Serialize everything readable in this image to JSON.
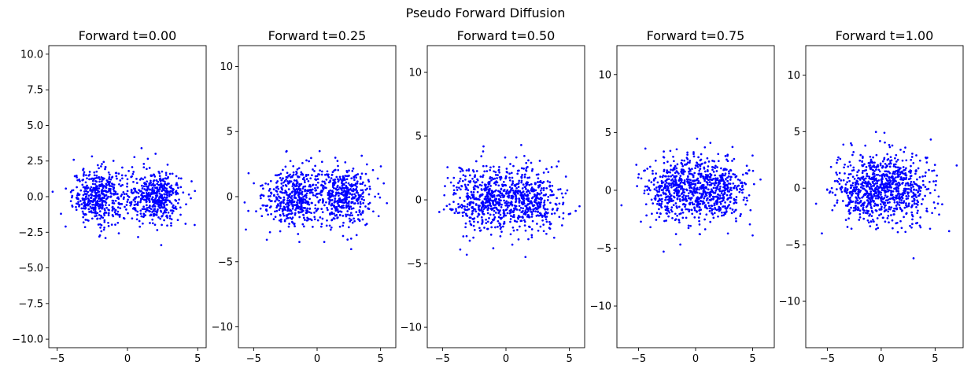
{
  "figure": {
    "suptitle": "Pseudo Forward Diffusion",
    "point_color": "#0000ff",
    "axis_color": "#000000"
  },
  "chart_data": [
    {
      "type": "scatter",
      "title": "Forward t=0.00",
      "xlabel": "",
      "ylabel": "",
      "xlim": [
        -5.6,
        5.6
      ],
      "ylim": [
        -10.6,
        10.6
      ],
      "xticks": [
        {
          "v": -5,
          "label": "−5"
        },
        {
          "v": 0,
          "label": "0"
        },
        {
          "v": 5,
          "label": "5"
        }
      ],
      "yticks": [
        {
          "v": -10,
          "label": "−10.0"
        },
        {
          "v": -7.5,
          "label": "−7.5"
        },
        {
          "v": -5,
          "label": "−5.0"
        },
        {
          "v": -2.5,
          "label": "−2.5"
        },
        {
          "v": 0,
          "label": "0.0"
        },
        {
          "v": 2.5,
          "label": "2.5"
        },
        {
          "v": 5,
          "label": "5.0"
        },
        {
          "v": 7.5,
          "label": "7.5"
        },
        {
          "v": 10,
          "label": "10.0"
        }
      ],
      "clusters": [
        {
          "center": [
            -2.0,
            0.0
          ],
          "spread": [
            0.95,
            0.95
          ],
          "n": 450
        },
        {
          "center": [
            2.0,
            0.0
          ],
          "spread": [
            0.95,
            0.95
          ],
          "n": 450
        }
      ],
      "outliers": [
        [
          1.0,
          3.4
        ],
        [
          2.4,
          -3.4
        ],
        [
          -2.0,
          -2.8
        ],
        [
          -4.4,
          -2.1
        ],
        [
          4.8,
          0.4
        ]
      ],
      "grid": false,
      "legend": "none"
    },
    {
      "type": "scatter",
      "title": "Forward t=0.25",
      "xlabel": "",
      "ylabel": "",
      "xlim": [
        -6.2,
        6.2
      ],
      "ylim": [
        -11.6,
        11.6
      ],
      "xticks": [
        {
          "v": -5,
          "label": "−5"
        },
        {
          "v": 0,
          "label": "0"
        },
        {
          "v": 5,
          "label": "5"
        }
      ],
      "yticks": [
        {
          "v": -10,
          "label": "−10"
        },
        {
          "v": -5,
          "label": "−5"
        },
        {
          "v": 0,
          "label": "0"
        },
        {
          "v": 5,
          "label": "5"
        },
        {
          "v": 10,
          "label": "10"
        }
      ],
      "clusters": [
        {
          "center": [
            -1.9,
            0.0
          ],
          "spread": [
            1.15,
            1.1
          ],
          "n": 450
        },
        {
          "center": [
            1.9,
            0.0
          ],
          "spread": [
            1.15,
            1.1
          ],
          "n": 450
        }
      ],
      "outliers": [
        [
          -2.4,
          3.5
        ],
        [
          0.2,
          3.5
        ],
        [
          2.4,
          -3.3
        ],
        [
          -5.4,
          1.8
        ],
        [
          5.5,
          -0.5
        ]
      ],
      "grid": false,
      "legend": "none"
    },
    {
      "type": "scatter",
      "title": "Forward t=0.50",
      "xlabel": "",
      "ylabel": "",
      "xlim": [
        -6.2,
        6.2
      ],
      "ylim": [
        -11.6,
        12.1
      ],
      "xticks": [
        {
          "v": -5,
          "label": "−5"
        },
        {
          "v": 0,
          "label": "0"
        },
        {
          "v": 5,
          "label": "5"
        }
      ],
      "yticks": [
        {
          "v": -10,
          "label": "−10"
        },
        {
          "v": -5,
          "label": "−5"
        },
        {
          "v": 0,
          "label": "0"
        },
        {
          "v": 5,
          "label": "5"
        },
        {
          "v": 10,
          "label": "10"
        }
      ],
      "clusters": [
        {
          "center": [
            -1.7,
            0.0
          ],
          "spread": [
            1.35,
            1.3
          ],
          "n": 450
        },
        {
          "center": [
            1.7,
            0.0
          ],
          "spread": [
            1.35,
            1.3
          ],
          "n": 450
        }
      ],
      "outliers": [
        [
          -1.8,
          3.8
        ],
        [
          1.2,
          4.3
        ],
        [
          -1.0,
          -3.8
        ],
        [
          -3.6,
          -3.9
        ],
        [
          5.8,
          -0.5
        ]
      ],
      "grid": false,
      "legend": "none"
    },
    {
      "type": "scatter",
      "title": "Forward t=0.75",
      "xlabel": "",
      "ylabel": "",
      "xlim": [
        -6.9,
        6.9
      ],
      "ylim": [
        -13.6,
        12.5
      ],
      "xticks": [
        {
          "v": -5,
          "label": "−5"
        },
        {
          "v": 0,
          "label": "0"
        },
        {
          "v": 5,
          "label": "5"
        }
      ],
      "yticks": [
        {
          "v": -10,
          "label": "−10"
        },
        {
          "v": -5,
          "label": "−5"
        },
        {
          "v": 0,
          "label": "0"
        },
        {
          "v": 5,
          "label": "5"
        },
        {
          "v": 10,
          "label": "10"
        }
      ],
      "clusters": [
        {
          "center": [
            -1.5,
            0.0
          ],
          "spread": [
            1.5,
            1.4
          ],
          "n": 450
        },
        {
          "center": [
            1.5,
            0.0
          ],
          "spread": [
            1.5,
            1.4
          ],
          "n": 450
        }
      ],
      "outliers": [
        [
          -2.8,
          -5.3
        ],
        [
          -4.4,
          3.6
        ],
        [
          1.3,
          4.1
        ],
        [
          -6.5,
          -1.3
        ],
        [
          5.0,
          -3.9
        ]
      ],
      "grid": false,
      "legend": "none"
    },
    {
      "type": "scatter",
      "title": "Forward t=1.00",
      "xlabel": "",
      "ylabel": "",
      "xlim": [
        -7.0,
        7.6
      ],
      "ylim": [
        -14.1,
        12.6
      ],
      "xticks": [
        {
          "v": -5,
          "label": "−5"
        },
        {
          "v": 0,
          "label": "0"
        },
        {
          "v": 5,
          "label": "5"
        }
      ],
      "yticks": [
        {
          "v": -10,
          "label": "−10"
        },
        {
          "v": -5,
          "label": "−5"
        },
        {
          "v": 0,
          "label": "0"
        },
        {
          "v": 5,
          "label": "5"
        },
        {
          "v": 10,
          "label": "10"
        }
      ],
      "clusters": [
        {
          "center": [
            -1.3,
            0.0
          ],
          "spread": [
            1.65,
            1.55
          ],
          "n": 450
        },
        {
          "center": [
            1.3,
            0.0
          ],
          "spread": [
            1.65,
            1.55
          ],
          "n": 450
        }
      ],
      "outliers": [
        [
          3.0,
          -6.2
        ],
        [
          -5.5,
          -4.0
        ],
        [
          6.3,
          -3.8
        ],
        [
          7.0,
          2.0
        ],
        [
          4.6,
          4.3
        ]
      ],
      "grid": false,
      "legend": "none"
    }
  ]
}
